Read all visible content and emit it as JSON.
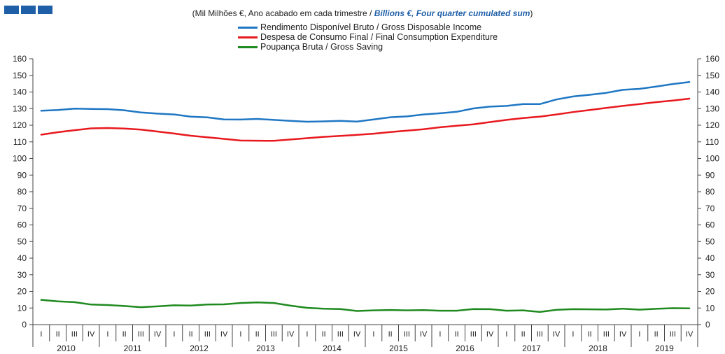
{
  "colors": {
    "logo": "#1f5fa8",
    "blue": "#1f77c4",
    "red": "#e8191e",
    "green": "#1f8a1f"
  },
  "header": {
    "subtitle_pt": "(Mil Milhões €, Ano acabado em cada trimestre / ",
    "subtitle_en": "Billions €, Four quarter cumulated sum",
    "subtitle_close": ")"
  },
  "chart_data": {
    "type": "line",
    "y_ticks": [
      "0",
      "10",
      "20",
      "30",
      "40",
      "50",
      "60",
      "70",
      "80",
      "90",
      "100",
      "110",
      "120",
      "130",
      "140",
      "150",
      "160"
    ],
    "ylim": [
      0,
      160
    ],
    "quarter_labels": [
      "I",
      "II",
      "III",
      "IV"
    ],
    "years": [
      "2010",
      "2011",
      "2012",
      "2013",
      "2014",
      "2015",
      "2016",
      "2017",
      "2018",
      "2019"
    ],
    "grid": false,
    "legend_position": "top-center",
    "series": [
      {
        "name": "Rendimento Disponível Bruto / Gross Disposable Income",
        "color": "#1f77c4",
        "values": [
          128.7,
          129.2,
          130.0,
          129.8,
          129.7,
          129.0,
          127.7,
          127.0,
          126.5,
          125.2,
          124.7,
          123.5,
          123.4,
          123.8,
          123.2,
          122.6,
          122.1,
          122.3,
          122.6,
          122.2,
          123.5,
          124.8,
          125.3,
          126.5,
          127.2,
          128.1,
          130.1,
          131.2,
          131.6,
          132.7,
          132.7,
          135.5,
          137.3,
          138.3,
          139.5,
          141.3,
          141.9,
          143.3,
          144.8,
          146.0
        ]
      },
      {
        "name": "Despesa de Consumo Final / Final Consumption Expenditure",
        "color": "#e8191e",
        "values": [
          114.3,
          115.8,
          117.0,
          118.1,
          118.3,
          118.0,
          117.4,
          116.2,
          115.0,
          113.7,
          112.7,
          111.8,
          110.8,
          110.7,
          110.6,
          111.4,
          112.2,
          113.0,
          113.6,
          114.2,
          114.9,
          115.9,
          116.7,
          117.6,
          118.8,
          119.7,
          120.5,
          121.9,
          123.2,
          124.3,
          125.2,
          126.5,
          127.9,
          129.2,
          130.4,
          131.6,
          132.7,
          133.9,
          134.8,
          136.0
        ]
      },
      {
        "name": "Poupança Bruta / Gross Saving",
        "color": "#1f8a1f",
        "values": [
          14.9,
          14.0,
          13.5,
          12.1,
          11.8,
          11.2,
          10.5,
          11.0,
          11.6,
          11.5,
          12.1,
          12.2,
          13.0,
          13.4,
          13.0,
          11.4,
          10.1,
          9.6,
          9.4,
          8.2,
          8.6,
          8.8,
          8.6,
          8.7,
          8.4,
          8.4,
          9.4,
          9.3,
          8.4,
          8.6,
          7.6,
          8.9,
          9.3,
          9.2,
          9.1,
          9.6,
          9.0,
          9.5,
          9.9,
          9.8
        ]
      }
    ]
  }
}
